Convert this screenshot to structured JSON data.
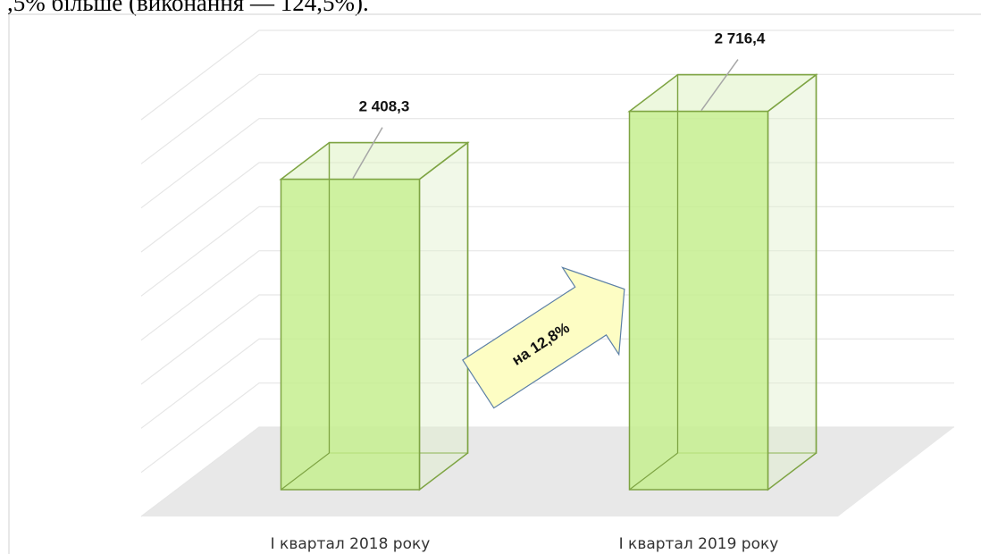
{
  "header_text": ",5% більше (виконання — 124,5%).",
  "chart_data": {
    "type": "bar3d",
    "categories": [
      "І квартал 2018 року",
      "І квартал 2019 року"
    ],
    "values": [
      2408.3,
      2716.4
    ],
    "value_labels": [
      "2 408,3",
      "2 716,4"
    ],
    "annotation": "на 12,8%",
    "color": "#c6ef8f",
    "ylim": [
      1000,
      2800
    ],
    "yticks": [
      1000,
      1200,
      1400,
      1600,
      1800,
      2000,
      2200,
      2400,
      2600,
      2800
    ],
    "grid": true
  }
}
